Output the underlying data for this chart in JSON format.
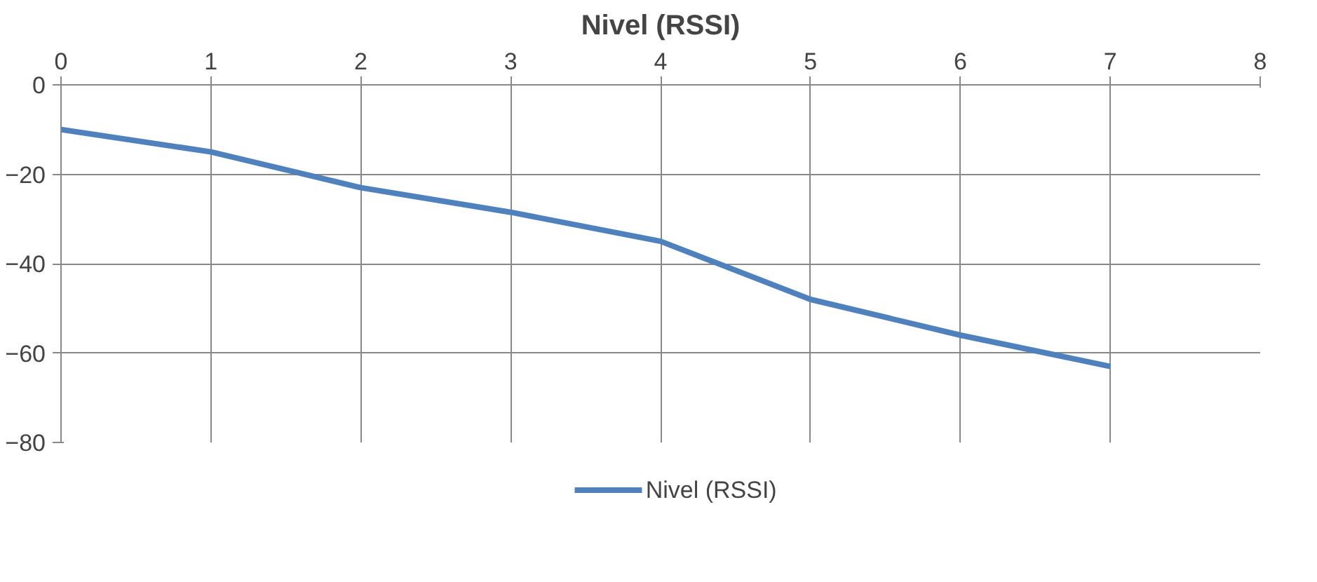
{
  "chart_data": {
    "type": "line",
    "title": "Nivel (RSSI)",
    "x": [
      0,
      1,
      2,
      3,
      4,
      5,
      6,
      7
    ],
    "series": [
      {
        "name": "Nivel (RSSI)",
        "color": "#4f81bd",
        "values": [
          -10,
          -15,
          -23,
          -28.5,
          -35,
          -48,
          -56,
          -63
        ]
      }
    ],
    "xlim": [
      0,
      8
    ],
    "xticks": [
      0,
      1,
      2,
      3,
      4,
      5,
      6,
      7,
      8
    ],
    "ylim": [
      -80,
      0
    ],
    "yticks": [
      0,
      -20,
      -40,
      -60,
      -80
    ],
    "grid": true,
    "legend": "bottom",
    "marker": "none",
    "line_style": "solid"
  }
}
